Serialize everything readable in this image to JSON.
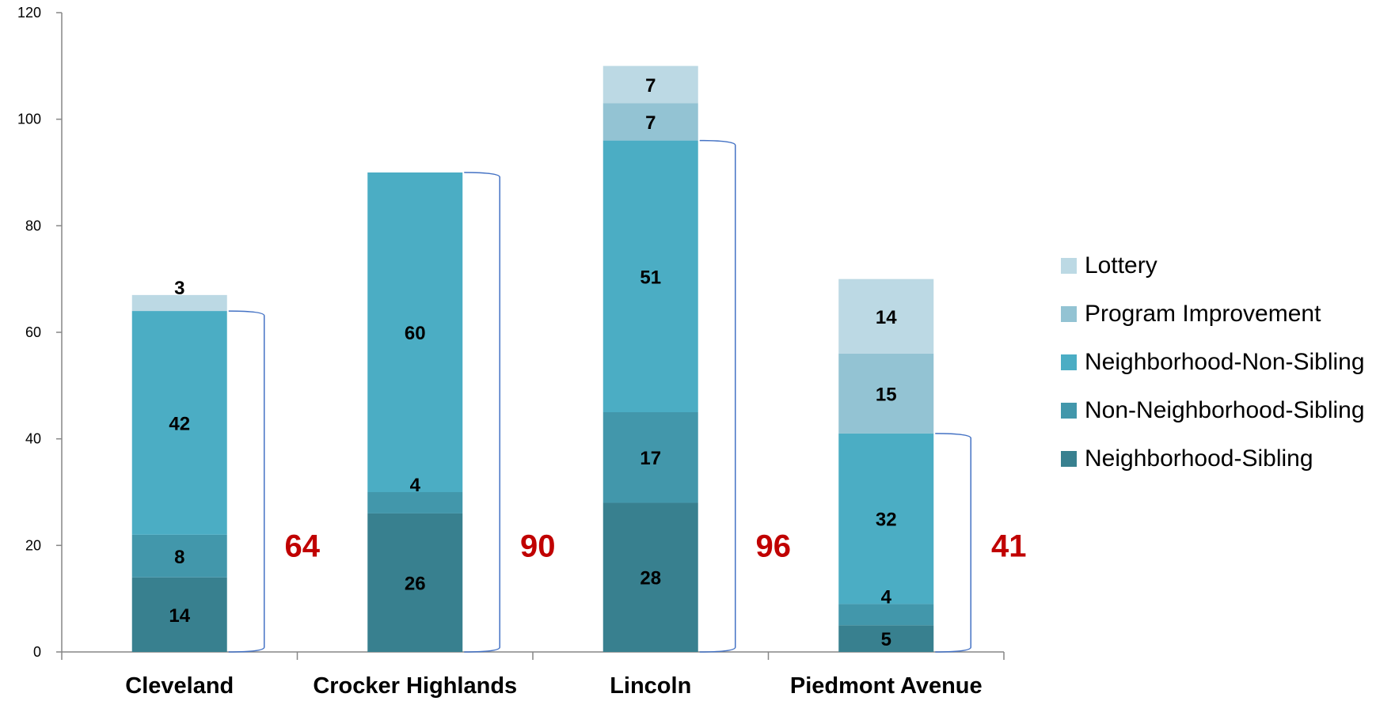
{
  "chart_data": {
    "type": "bar",
    "stacked": true,
    "categories": [
      "Cleveland",
      "Crocker Highlands",
      "Lincoln",
      "Piedmont Avenue"
    ],
    "series": [
      {
        "name": "Neighborhood-Sibling",
        "color": "#38808f",
        "values": [
          14,
          26,
          28,
          5
        ]
      },
      {
        "name": "Non-Neighborhood-Sibling",
        "color": "#4297ab",
        "values": [
          8,
          4,
          17,
          4
        ]
      },
      {
        "name": "Neighborhood-Non-Sibling",
        "color": "#4badc4",
        "values": [
          42,
          60,
          51,
          32
        ]
      },
      {
        "name": "Program Improvement",
        "color": "#93c3d3",
        "values": [
          0,
          0,
          7,
          15
        ]
      },
      {
        "name": "Lottery",
        "color": "#bcd9e4",
        "values": [
          3,
          0,
          7,
          14
        ]
      }
    ],
    "bracket_totals": [
      64,
      90,
      96,
      41
    ],
    "bracket_color": "#4472c4",
    "total_label_color": "#c00000",
    "ylim": [
      0,
      120
    ],
    "yticks": [
      0,
      20,
      40,
      60,
      80,
      100,
      120
    ],
    "legend_position": "right",
    "legend_order": [
      "Lottery",
      "Program Improvement",
      "Neighborhood-Non-Sibling",
      "Non-Neighborhood-Sibling",
      "Neighborhood-Sibling"
    ],
    "grid": false
  }
}
